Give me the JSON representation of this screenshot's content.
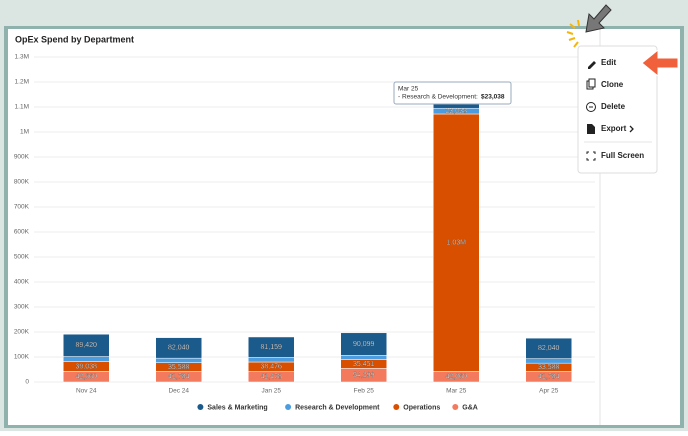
{
  "chart_data": {
    "type": "stacked-bar",
    "title": "OpEx Spend by Department",
    "categories": [
      "Nov 24",
      "Dec 24",
      "Jan 25",
      "Feb 25",
      "Mar 25",
      "Apr 25"
    ],
    "series": [
      {
        "name": "Sales & Marketing",
        "color": "#1b5b8c",
        "values": [
          89420,
          82040,
          81159,
          90099,
          30000,
          82040
        ],
        "value_labels": [
          "89,420",
          "82,040",
          "81,159",
          "90,099",
          null,
          "82,040"
        ]
      },
      {
        "name": "Research & Development",
        "color": "#4c9de0",
        "values": [
          20000,
          18000,
          19000,
          17000,
          23038,
          18000
        ],
        "value_labels": [
          null,
          null,
          null,
          null,
          "23,038",
          null
        ]
      },
      {
        "name": "Operations",
        "color": "#d94f00",
        "values": [
          39038,
          35588,
          38476,
          35451,
          1030000,
          33588
        ],
        "value_labels": [
          "39,038",
          "35,588",
          "38,476",
          "35,451",
          "1.03M",
          "33,588"
        ]
      },
      {
        "name": "G&A",
        "color": "#f47a5e",
        "values": [
          42660,
          41784,
          41478,
          54299,
          42060,
          41784
        ],
        "value_labels": [
          "42,660",
          "41,784",
          "41,478",
          "54,299",
          "42,060",
          "41,784"
        ]
      }
    ],
    "ylim": [
      0,
      1300000
    ],
    "yticks": [
      0,
      {
        "value": 100000,
        "label": "100K"
      },
      {
        "value": 200000,
        "label": "200K"
      },
      {
        "value": 300000,
        "label": "300K"
      },
      {
        "value": 400000,
        "label": "400K"
      },
      {
        "value": 500000,
        "label": "500K"
      },
      {
        "value": 600000,
        "label": "600K"
      },
      {
        "value": 700000,
        "label": "700K"
      },
      {
        "value": 800000,
        "label": "800K"
      },
      {
        "value": 900000,
        "label": "900K"
      },
      {
        "value": 1000000,
        "label": "1M"
      },
      {
        "value": 1100000,
        "label": "1.1M"
      },
      {
        "value": 1200000,
        "label": "1.2M"
      },
      {
        "value": 1300000,
        "label": "1.3M"
      }
    ],
    "grid": true
  },
  "tooltip": {
    "title": "Mar 25",
    "label": "- Research & Development:",
    "value": "$23,038"
  },
  "menu": {
    "items": [
      "Edit",
      "Clone",
      "Delete",
      "Export",
      "Full Screen"
    ]
  }
}
